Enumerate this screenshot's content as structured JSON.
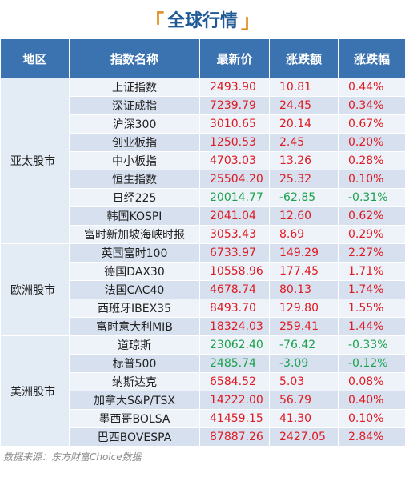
{
  "title": "全球行情",
  "title_left_bracket": "「",
  "title_right_bracket": "」",
  "columns": [
    "地区",
    "指数名称",
    "最新价",
    "涨跌额",
    "涨跌幅"
  ],
  "regions": [
    {
      "name": "亚太股市",
      "rows": [
        {
          "name": "上证指数",
          "price": "2493.90",
          "change": "10.81",
          "pct": "0.44%",
          "dir": "up"
        },
        {
          "name": "深证成指",
          "price": "7239.79",
          "change": "24.45",
          "pct": "0.34%",
          "dir": "up"
        },
        {
          "name": "沪深300",
          "price": "3010.65",
          "change": "20.14",
          "pct": "0.67%",
          "dir": "up"
        },
        {
          "name": "创业板指",
          "price": "1250.53",
          "change": "2.45",
          "pct": "0.20%",
          "dir": "up"
        },
        {
          "name": "中小板指",
          "price": "4703.03",
          "change": "13.26",
          "pct": "0.28%",
          "dir": "up"
        },
        {
          "name": "恒生指数",
          "price": "25504.20",
          "change": "25.32",
          "pct": "0.10%",
          "dir": "up"
        },
        {
          "name": "日经225",
          "price": "20014.77",
          "change": "-62.85",
          "pct": "-0.31%",
          "dir": "down"
        },
        {
          "name": "韩国KOSPI",
          "price": "2041.04",
          "change": "12.60",
          "pct": "0.62%",
          "dir": "up"
        },
        {
          "name": "富时新加坡海峡时报",
          "price": "3053.43",
          "change": "8.69",
          "pct": "0.29%",
          "dir": "up"
        }
      ]
    },
    {
      "name": "欧洲股市",
      "rows": [
        {
          "name": "英国富时100",
          "price": "6733.97",
          "change": "149.29",
          "pct": "2.27%",
          "dir": "up"
        },
        {
          "name": "德国DAX30",
          "price": "10558.96",
          "change": "177.45",
          "pct": "1.71%",
          "dir": "up"
        },
        {
          "name": "法国CAC40",
          "price": "4678.74",
          "change": "80.13",
          "pct": "1.74%",
          "dir": "up"
        },
        {
          "name": "西班牙IBEX35",
          "price": "8493.70",
          "change": "129.80",
          "pct": "1.55%",
          "dir": "up"
        },
        {
          "name": "富时意大利MIB",
          "price": "18324.03",
          "change": "259.41",
          "pct": "1.44%",
          "dir": "up"
        }
      ]
    },
    {
      "name": "美洲股市",
      "rows": [
        {
          "name": "道琼斯",
          "price": "23062.40",
          "change": "-76.42",
          "pct": "-0.33%",
          "dir": "down"
        },
        {
          "name": "标普500",
          "price": "2485.74",
          "change": "-3.09",
          "pct": "-0.12%",
          "dir": "down"
        },
        {
          "name": "纳斯达克",
          "price": "6584.52",
          "change": "5.03",
          "pct": "0.08%",
          "dir": "up"
        },
        {
          "name": "加拿大S&P/TSX",
          "price": "14222.00",
          "change": "56.79",
          "pct": "0.40%",
          "dir": "up"
        },
        {
          "name": "墨西哥BOLSA",
          "price": "41459.15",
          "change": "41.30",
          "pct": "0.10%",
          "dir": "up"
        },
        {
          "name": "巴西BOVESPA",
          "price": "87887.26",
          "change": "2427.05",
          "pct": "2.84%",
          "dir": "up"
        }
      ]
    }
  ],
  "colors": {
    "header_bg": "#3b73b1",
    "title_text": "#1f5a96",
    "bracket": "#e08a18",
    "up": "#e01b22",
    "down": "#1aa24b",
    "row_light": "#eef2f9",
    "row_dark": "#d6e0ef",
    "region_bg": "#e3ebf5"
  },
  "source_text": "数据来源：东方财富Choice数据"
}
